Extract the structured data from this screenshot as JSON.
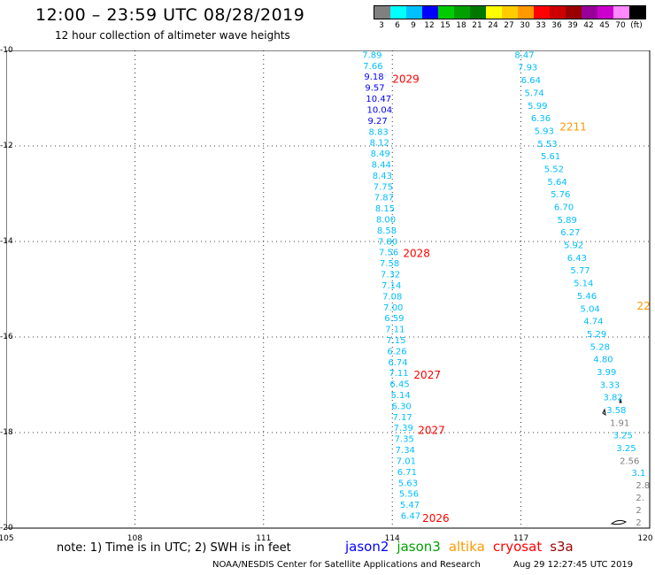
{
  "header": {
    "title": "12:00 – 23:59 UTC 08/28/2019",
    "subtitle": "12 hour collection of altimeter wave heights"
  },
  "colorbar": {
    "colors": [
      "#808080",
      "#00ffff",
      "#00bfff",
      "#0000ff",
      "#00cc00",
      "#00a000",
      "#007800",
      "#ffff00",
      "#ffcc00",
      "#ff9900",
      "#ff0000",
      "#cc0000",
      "#990000",
      "#990099",
      "#cc00cc",
      "#ff88ff",
      "#000000"
    ],
    "labels": [
      "3",
      "6",
      "9",
      "12",
      "15",
      "18",
      "21",
      "24",
      "27",
      "30",
      "33",
      "36",
      "39",
      "42",
      "45",
      "70",
      "(ft)"
    ]
  },
  "map": {
    "lon_range": [
      105,
      120
    ],
    "lat_range": [
      -20,
      -10
    ],
    "x_labels": [
      "105",
      "108",
      "111",
      "114",
      "117",
      "120"
    ],
    "y_labels": [
      "-10",
      "-12",
      "-14",
      "-16",
      "-18",
      "-20"
    ],
    "grid_style": "dotted"
  },
  "tracks": [
    {
      "mission": "jason2",
      "color": "#00bfff",
      "lon_start": 113.3,
      "lon_end": 114.2,
      "lat_start": -10.1,
      "lat_end": -19.75,
      "values": [
        "7.89",
        "7.66",
        "9.18",
        "9.57",
        "10.47",
        "10.04",
        "9.27",
        "8.83",
        "8.12",
        "8.49",
        "8.44",
        "8.43",
        "7.75",
        "7.87",
        "8.15",
        "8.00",
        "8.58",
        "7.80",
        "7.56",
        "7.58",
        "7.32",
        "7.14",
        "7.08",
        "7.00",
        "6.59",
        "7.11",
        "7.15",
        "6.26",
        "6.74",
        "7.11",
        "6.45",
        "5.14",
        "6.30",
        "7.17",
        "7.39",
        "7.35",
        "7.34",
        "7.01",
        "6.71",
        "5.63",
        "5.56",
        "5.47",
        "6.47"
      ],
      "value_colors": {
        "2": "#0000ff",
        "3": "#0000ff",
        "4": "#0000ff",
        "5": "#0000ff",
        "6": "#0000ff"
      }
    },
    {
      "mission": "altika",
      "color": "#00bfff",
      "lon_start": 116.85,
      "lon_end": 119.3,
      "lat_start": -10.1,
      "lat_end": -18.6,
      "values": [
        "8.47",
        "7.93",
        "6.64",
        "5.74",
        "5.99",
        "6.36",
        "5.93",
        "5.53",
        "5.61",
        "5.52",
        "5.64",
        "5.76",
        "6.70",
        "5.89",
        "6.27",
        "5.92",
        "6.43",
        "5.77",
        "5.14",
        "5.46",
        "5.04",
        "4.74",
        "5.29",
        "5.28",
        "4.80",
        "3.99",
        "3.33",
        "3.82",
        "3.58",
        "1.91",
        "3.25",
        "3.25",
        "2.56"
      ],
      "value_colors": {
        "29": "#808080",
        "32": "#808080"
      }
    }
  ],
  "track_tail": {
    "values": [
      "3.1",
      "2.8",
      "2.",
      "2",
      "2"
    ],
    "colors": [
      "#00bfff",
      "#808080",
      "#808080",
      "#808080",
      "#808080"
    ]
  },
  "time_labels": [
    {
      "text": "2029",
      "color": "#ff0000",
      "lon": 114.0,
      "lat": -10.6
    },
    {
      "text": "2028",
      "color": "#ff0000",
      "lon": 114.25,
      "lat": -14.25
    },
    {
      "text": "2027",
      "color": "#ff0000",
      "lon": 114.5,
      "lat": -16.8
    },
    {
      "text": "2027",
      "color": "#ff0000",
      "lon": 114.6,
      "lat": -17.95
    },
    {
      "text": "2026",
      "color": "#ff0000",
      "lon": 114.7,
      "lat": -19.8
    },
    {
      "text": "2211",
      "color": "#ff9900",
      "lon": 117.9,
      "lat": -11.6
    },
    {
      "text": "22",
      "color": "#ff9900",
      "lon": 119.7,
      "lat": -15.35
    }
  ],
  "note": "note:  1) Time is in UTC;  2) SWH is in feet",
  "legend": [
    {
      "label": "jason2",
      "color": "#0000ff"
    },
    {
      "label": "jason3",
      "color": "#00a000"
    },
    {
      "label": "altika",
      "color": "#ff9900"
    },
    {
      "label": "cryosat",
      "color": "#ff0000"
    },
    {
      "label": "s3a",
      "color": "#990000"
    }
  ],
  "footer": {
    "credit": "NOAA/NESDIS Center for Satellite Applications and Research",
    "timestamp": "Aug 29 12:27:45 UTC 2019"
  }
}
